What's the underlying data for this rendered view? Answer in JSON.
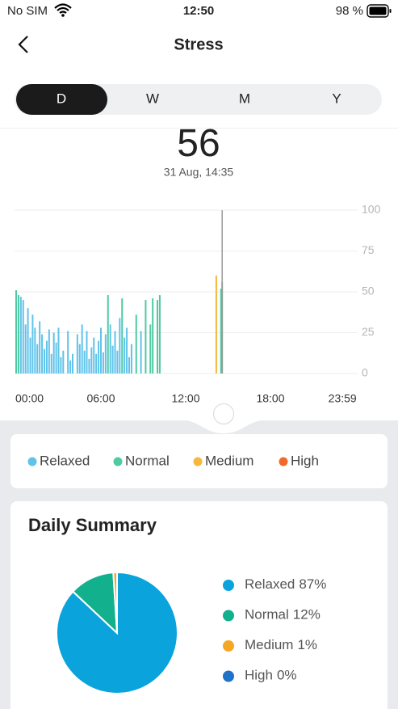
{
  "status_bar": {
    "carrier": "No SIM",
    "time": "12:50",
    "battery": "98 %"
  },
  "header": {
    "title": "Stress"
  },
  "tabs": [
    "D",
    "W",
    "M",
    "Y"
  ],
  "reading": {
    "value": 56,
    "time": "31 Aug, 14:35"
  },
  "chart_data": [
    {
      "type": "bar",
      "x": [
        0,
        10,
        20,
        30,
        40,
        50,
        60,
        70,
        80,
        90,
        100,
        110,
        120,
        130,
        140,
        150,
        160,
        170,
        180,
        190,
        200,
        220,
        230,
        240,
        260,
        270,
        280,
        290,
        300,
        310,
        320,
        330,
        340,
        350,
        360,
        370,
        380,
        390,
        400,
        410,
        420,
        430,
        440,
        450,
        460,
        470,
        480,
        490,
        510,
        530,
        550,
        570,
        580,
        600,
        610,
        850,
        870,
        875
      ],
      "series": [
        {
          "name": "Relaxed",
          "color": "#5fc3ea",
          "values": [
            null,
            null,
            47,
            45,
            30,
            40,
            22,
            36,
            28,
            18,
            32,
            24,
            15,
            20,
            27,
            12,
            25,
            19,
            28,
            10,
            14,
            26,
            8,
            12,
            24,
            18,
            30,
            14,
            26,
            9,
            16,
            22,
            12,
            20,
            28,
            13,
            24,
            null,
            30,
            17,
            26,
            14,
            34,
            null,
            22,
            28,
            10,
            18,
            null,
            26,
            null,
            null,
            null,
            null,
            null,
            null,
            null,
            null
          ]
        },
        {
          "name": "Normal",
          "color": "#4fcaa2",
          "values": [
            51,
            48,
            null,
            null,
            null,
            null,
            null,
            null,
            null,
            null,
            null,
            null,
            null,
            null,
            null,
            null,
            null,
            null,
            null,
            null,
            null,
            null,
            null,
            null,
            null,
            null,
            null,
            null,
            null,
            null,
            null,
            null,
            null,
            null,
            null,
            null,
            null,
            48,
            null,
            null,
            null,
            null,
            null,
            46,
            null,
            null,
            null,
            null,
            36,
            null,
            45,
            30,
            46,
            45,
            48,
            null,
            52,
            56
          ]
        },
        {
          "name": "Medium",
          "color": "#f6b73c",
          "values": [
            null,
            null,
            null,
            null,
            null,
            null,
            null,
            null,
            null,
            null,
            null,
            null,
            null,
            null,
            null,
            null,
            null,
            null,
            null,
            null,
            null,
            null,
            null,
            null,
            null,
            null,
            null,
            null,
            null,
            null,
            null,
            null,
            null,
            null,
            null,
            null,
            null,
            null,
            null,
            null,
            null,
            null,
            null,
            null,
            null,
            null,
            null,
            null,
            null,
            null,
            null,
            null,
            null,
            null,
            null,
            60,
            null,
            null
          ]
        },
        {
          "name": "High",
          "color": "#f26a2b",
          "values": [
            null,
            null,
            null,
            null,
            null,
            null,
            null,
            null,
            null,
            null,
            null,
            null,
            null,
            null,
            null,
            null,
            null,
            null,
            null,
            null,
            null,
            null,
            null,
            null,
            null,
            null,
            null,
            null,
            null,
            null,
            null,
            null,
            null,
            null,
            null,
            null,
            null,
            null,
            null,
            null,
            null,
            null,
            null,
            null,
            null,
            null,
            null,
            null,
            null,
            null,
            null,
            null,
            null,
            null,
            null,
            null,
            null,
            null
          ]
        }
      ],
      "xlim": [
        0,
        1440
      ],
      "xticks": [
        {
          "value": 0,
          "label": "00:00"
        },
        {
          "value": 360,
          "label": "06:00"
        },
        {
          "value": 720,
          "label": "12:00"
        },
        {
          "value": 1080,
          "label": "18:00"
        },
        {
          "value": 1439,
          "label": "23:59"
        }
      ],
      "ylim": [
        0,
        100
      ],
      "yticks": [
        0,
        25,
        50,
        75,
        100
      ],
      "grid": true,
      "cursor": 875
    },
    {
      "type": "pie",
      "title": "Daily Summary",
      "categories": [
        "Relaxed",
        "Normal",
        "Medium",
        "High"
      ],
      "values": [
        87,
        12,
        1,
        0
      ],
      "value_labels": [
        "87%",
        "12%",
        "1%",
        "0%"
      ],
      "colors": [
        "#0aa3dc",
        "#12b08d",
        "#f5a623",
        "#1f72c6"
      ]
    }
  ]
}
